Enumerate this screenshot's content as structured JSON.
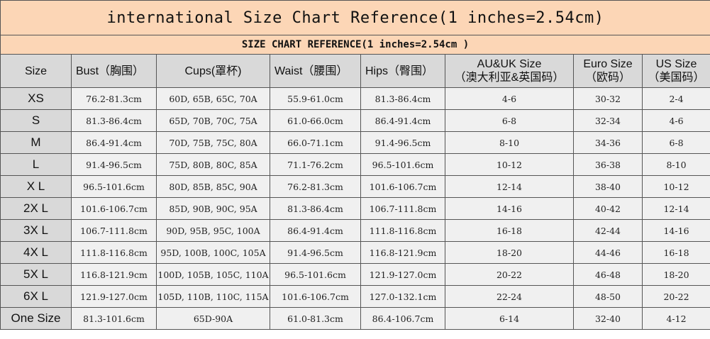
{
  "title": "international Size Chart Reference(1 inches=2.54cm)",
  "subtitle": "SIZE CHART REFERENCE(1 inches=2.54cm )",
  "headers": [
    {
      "line1": "Size",
      "line2": ""
    },
    {
      "line1": "Bust（胸围）",
      "line2": ""
    },
    {
      "line1": "Cups(罩杯)",
      "line2": ""
    },
    {
      "line1": "Waist（腰围）",
      "line2": ""
    },
    {
      "line1": "Hips（臀围）",
      "line2": ""
    },
    {
      "line1": "AU&UK Size",
      "line2": "（澳大利亚&英国码）"
    },
    {
      "line1": "Euro Size",
      "line2": "（欧码）"
    },
    {
      "line1": "US Size",
      "line2": "（美国码）"
    }
  ],
  "rows": [
    [
      "XS",
      "76.2-81.3cm",
      "60D, 65B, 65C, 70A",
      "55.9-61.0cm",
      "81.3-86.4cm",
      "4-6",
      "30-32",
      "2-4"
    ],
    [
      "S",
      "81.3-86.4cm",
      "65D, 70B, 70C, 75A",
      "61.0-66.0cm",
      "86.4-91.4cm",
      "6-8",
      "32-34",
      "4-6"
    ],
    [
      "M",
      "86.4-91.4cm",
      "70D, 75B, 75C, 80A",
      "66.0-71.1cm",
      "91.4-96.5cm",
      "8-10",
      "34-36",
      "6-8"
    ],
    [
      "L",
      "91.4-96.5cm",
      "75D, 80B, 80C, 85A",
      "71.1-76.2cm",
      "96.5-101.6cm",
      "10-12",
      "36-38",
      "8-10"
    ],
    [
      "X L",
      "96.5-101.6cm",
      "80D, 85B, 85C, 90A",
      "76.2-81.3cm",
      "101.6-106.7cm",
      "12-14",
      "38-40",
      "10-12"
    ],
    [
      "2X L",
      "101.6-106.7cm",
      "85D, 90B, 90C, 95A",
      "81.3-86.4cm",
      "106.7-111.8cm",
      "14-16",
      "40-42",
      "12-14"
    ],
    [
      "3X L",
      "106.7-111.8cm",
      "90D, 95B, 95C, 100A",
      "86.4-91.4cm",
      "111.8-116.8cm",
      "16-18",
      "42-44",
      "14-16"
    ],
    [
      "4X L",
      "111.8-116.8cm",
      "95D, 100B, 100C, 105A",
      "91.4-96.5cm",
      "116.8-121.9cm",
      "18-20",
      "44-46",
      "16-18"
    ],
    [
      "5X L",
      "116.8-121.9cm",
      "100D, 105B, 105C, 110A",
      "96.5-101.6cm",
      "121.9-127.0cm",
      "20-22",
      "46-48",
      "18-20"
    ],
    [
      "6X L",
      "121.9-127.0cm",
      "105D, 110B, 110C, 115A",
      "101.6-106.7cm",
      "127.0-132.1cm",
      "22-24",
      "48-50",
      "20-22"
    ],
    [
      "One Size",
      "81.3-101.6cm",
      "65D-90A",
      "61.0-81.3cm",
      "86.4-106.7cm",
      "6-14",
      "32-40",
      "4-12"
    ]
  ],
  "colors": {
    "title_bg": "#fcd6b6",
    "header_bg": "#d9d9d9",
    "cell_bg": "#f0f0f0",
    "border": "#555555"
  }
}
